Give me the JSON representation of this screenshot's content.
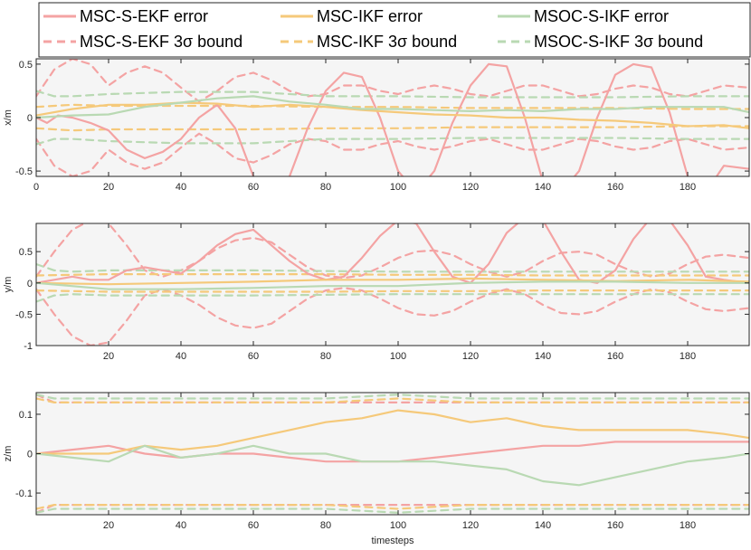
{
  "legend": {
    "location": "top",
    "entries": [
      {
        "label": "MSC-S-EKF error",
        "color": "#f4a3a3",
        "style": "solid"
      },
      {
        "label": "MSC-IKF error",
        "color": "#f5c97a",
        "style": "solid"
      },
      {
        "label": "MSOC-S-IKF error",
        "color": "#b9d9b3",
        "style": "solid"
      },
      {
        "label": "MSC-S-EKF 3σ bound",
        "color": "#f4a3a3",
        "style": "dashed"
      },
      {
        "label": "MSC-IKF 3σ bound",
        "color": "#f5c97a",
        "style": "dashed"
      },
      {
        "label": "MSOC-S-IKF 3σ bound",
        "color": "#b9d9b3",
        "style": "dashed"
      }
    ]
  },
  "chart_data": [
    {
      "type": "line",
      "ylabel": "x/m",
      "xlabel": "",
      "xlim": [
        0,
        197
      ],
      "ylim": [
        -0.55,
        0.55
      ],
      "xticks": [
        0,
        20,
        40,
        60,
        80,
        100,
        120,
        140,
        160,
        180
      ],
      "xtick_labels": [
        "0",
        "20",
        "40",
        "60",
        "80",
        "100",
        "120",
        "140",
        "160",
        "180"
      ],
      "yticks": [
        -0.5,
        0,
        0.5
      ],
      "ytick_labels": [
        "-0.5",
        "0",
        "0.5"
      ],
      "grid": false,
      "background": "#f5f5f5",
      "series": [
        {
          "name": "MSC-S-EKF error",
          "color": "#f4a3a3",
          "style": "solid",
          "x": [
            0,
            3,
            6,
            10,
            15,
            20,
            25,
            30,
            35,
            40,
            45,
            50,
            55,
            60,
            65,
            70,
            75,
            80,
            85,
            90,
            95,
            100,
            105,
            110,
            115,
            120,
            125,
            130,
            135,
            140,
            145,
            150,
            155,
            160,
            165,
            170,
            175,
            180,
            185,
            190,
            197
          ],
          "y": [
            0.0,
            -0.05,
            0.02,
            0.0,
            -0.05,
            -0.12,
            -0.3,
            -0.38,
            -0.32,
            -0.2,
            0.0,
            0.12,
            -0.1,
            -0.55,
            -0.7,
            -0.55,
            -0.1,
            0.25,
            0.42,
            0.38,
            0.0,
            -0.5,
            -0.7,
            -0.5,
            -0.05,
            0.3,
            0.5,
            0.48,
            0.0,
            -0.6,
            -0.7,
            -0.5,
            0.0,
            0.4,
            0.5,
            0.47,
            0.05,
            -0.55,
            -0.7,
            -0.45,
            -0.48
          ]
        },
        {
          "name": "MSC-IKF error",
          "color": "#f5c97a",
          "style": "solid",
          "x": [
            0,
            10,
            20,
            30,
            40,
            50,
            60,
            70,
            80,
            90,
            100,
            110,
            120,
            130,
            140,
            150,
            160,
            170,
            180,
            190,
            197
          ],
          "y": [
            0.02,
            0.08,
            0.12,
            0.12,
            0.14,
            0.13,
            0.1,
            0.12,
            0.1,
            0.07,
            0.05,
            0.03,
            0.02,
            0.0,
            0.0,
            -0.02,
            -0.03,
            -0.05,
            -0.08,
            -0.07,
            -0.1
          ]
        },
        {
          "name": "MSOC-S-IKF error",
          "color": "#b9d9b3",
          "style": "solid",
          "x": [
            0,
            10,
            20,
            30,
            40,
            50,
            60,
            70,
            80,
            90,
            100,
            110,
            120,
            130,
            140,
            150,
            160,
            170,
            180,
            190,
            197
          ],
          "y": [
            0.0,
            0.02,
            0.03,
            0.1,
            0.14,
            0.18,
            0.2,
            0.15,
            0.12,
            0.08,
            0.08,
            0.07,
            0.06,
            0.07,
            0.06,
            0.08,
            0.08,
            0.1,
            0.1,
            0.1,
            0.05
          ]
        },
        {
          "name": "MSC-S-EKF 3σ bound",
          "color": "#f4a3a3",
          "style": "dashed",
          "x": [
            0,
            5,
            10,
            15,
            20,
            25,
            30,
            35,
            40,
            45,
            50,
            55,
            60,
            65,
            70,
            75,
            80,
            85,
            90,
            95,
            100,
            105,
            110,
            115,
            120,
            125,
            130,
            135,
            140,
            145,
            150,
            155,
            160,
            165,
            170,
            175,
            180,
            185,
            190,
            197
          ],
          "y": [
            0.2,
            0.45,
            0.55,
            0.5,
            0.3,
            0.42,
            0.48,
            0.42,
            0.28,
            0.15,
            0.25,
            0.38,
            0.42,
            0.35,
            0.25,
            0.2,
            0.22,
            0.3,
            0.3,
            0.25,
            0.22,
            0.27,
            0.3,
            0.27,
            0.22,
            0.2,
            0.25,
            0.3,
            0.3,
            0.25,
            0.2,
            0.22,
            0.27,
            0.3,
            0.28,
            0.22,
            0.2,
            0.25,
            0.3,
            0.28
          ]
        },
        {
          "name": "MSC-IKF 3σ bound",
          "color": "#f5c97a",
          "style": "dashed",
          "x": [
            0,
            10,
            20,
            40,
            60,
            80,
            100,
            120,
            140,
            160,
            180,
            197
          ],
          "y": [
            0.1,
            0.12,
            0.11,
            0.11,
            0.11,
            0.1,
            0.1,
            0.09,
            0.09,
            0.09,
            0.08,
            0.08
          ]
        },
        {
          "name": "MSOC-S-IKF 3σ bound",
          "color": "#b9d9b3",
          "style": "dashed",
          "x": [
            0,
            5,
            10,
            20,
            40,
            60,
            80,
            100,
            120,
            140,
            160,
            180,
            197
          ],
          "y": [
            0.25,
            0.2,
            0.2,
            0.22,
            0.24,
            0.24,
            0.2,
            0.2,
            0.19,
            0.19,
            0.19,
            0.2,
            0.2
          ]
        }
      ]
    },
    {
      "type": "line",
      "ylabel": "y/m",
      "xlabel": "",
      "xlim": [
        0,
        197
      ],
      "ylim": [
        -1,
        0.95
      ],
      "xticks": [
        20,
        40,
        60,
        80,
        100,
        120,
        140,
        160,
        180
      ],
      "xtick_labels": [
        "20",
        "40",
        "60",
        "80",
        "100",
        "120",
        "140",
        "160",
        "180"
      ],
      "yticks": [
        -1,
        -0.5,
        0,
        0.5
      ],
      "ytick_labels": [
        "-1",
        "-0.5",
        "0",
        "0.5"
      ],
      "grid": false,
      "background": "#f5f5f5",
      "series": [
        {
          "name": "MSC-S-EKF error",
          "color": "#f4a3a3",
          "style": "solid",
          "x": [
            0,
            5,
            10,
            15,
            20,
            25,
            30,
            35,
            40,
            45,
            50,
            55,
            60,
            65,
            70,
            75,
            80,
            85,
            90,
            95,
            100,
            105,
            110,
            115,
            120,
            125,
            130,
            135,
            140,
            145,
            150,
            155,
            160,
            165,
            170,
            175,
            180,
            185,
            190,
            197
          ],
          "y": [
            0.0,
            0.05,
            0.1,
            0.05,
            0.05,
            0.2,
            0.25,
            0.2,
            0.15,
            0.35,
            0.6,
            0.78,
            0.85,
            0.6,
            0.35,
            0.15,
            0.05,
            0.1,
            0.4,
            0.75,
            1.0,
            0.95,
            0.5,
            0.1,
            0.0,
            0.3,
            0.8,
            1.05,
            1.0,
            0.5,
            0.05,
            0.0,
            0.2,
            0.7,
            1.05,
            1.0,
            0.6,
            0.1,
            0.05,
            0.0
          ]
        },
        {
          "name": "MSC-IKF error",
          "color": "#f5c97a",
          "style": "solid",
          "x": [
            0,
            20,
            40,
            60,
            80,
            100,
            120,
            140,
            160,
            180,
            197
          ],
          "y": [
            0.0,
            -0.02,
            0.0,
            0.02,
            0.05,
            0.05,
            0.07,
            0.05,
            0.03,
            0.05,
            0.02
          ]
        },
        {
          "name": "MSOC-S-IKF error",
          "color": "#b9d9b3",
          "style": "solid",
          "x": [
            0,
            20,
            40,
            60,
            80,
            100,
            120,
            140,
            160,
            180,
            197
          ],
          "y": [
            0.0,
            -0.1,
            -0.1,
            -0.08,
            -0.05,
            -0.05,
            0.0,
            0.02,
            0.02,
            0.0,
            0.0
          ]
        },
        {
          "name": "MSC-S-EKF 3σ bound",
          "color": "#f4a3a3",
          "style": "dashed",
          "x": [
            0,
            5,
            10,
            15,
            20,
            25,
            30,
            35,
            40,
            45,
            50,
            55,
            60,
            65,
            70,
            75,
            80,
            85,
            90,
            95,
            100,
            105,
            110,
            115,
            120,
            125,
            130,
            135,
            140,
            145,
            150,
            155,
            160,
            165,
            170,
            175,
            180,
            185,
            190,
            197
          ],
          "y": [
            0.1,
            0.5,
            0.85,
            1.0,
            0.95,
            0.6,
            0.2,
            0.1,
            0.2,
            0.35,
            0.55,
            0.68,
            0.72,
            0.65,
            0.45,
            0.25,
            0.12,
            0.08,
            0.12,
            0.25,
            0.4,
            0.5,
            0.52,
            0.45,
            0.3,
            0.18,
            0.1,
            0.18,
            0.35,
            0.48,
            0.5,
            0.45,
            0.3,
            0.18,
            0.1,
            0.15,
            0.3,
            0.42,
            0.45,
            0.4
          ]
        },
        {
          "name": "MSC-IKF 3σ bound",
          "color": "#f5c97a",
          "style": "dashed",
          "x": [
            0,
            20,
            40,
            60,
            80,
            100,
            120,
            140,
            160,
            180,
            197
          ],
          "y": [
            0.12,
            0.14,
            0.14,
            0.14,
            0.14,
            0.13,
            0.13,
            0.12,
            0.12,
            0.12,
            0.12
          ]
        },
        {
          "name": "MSOC-S-IKF 3σ bound",
          "color": "#b9d9b3",
          "style": "dashed",
          "x": [
            0,
            5,
            10,
            20,
            40,
            60,
            80,
            100,
            120,
            140,
            160,
            180,
            197
          ],
          "y": [
            0.3,
            0.2,
            0.18,
            0.2,
            0.2,
            0.2,
            0.19,
            0.18,
            0.18,
            0.18,
            0.18,
            0.18,
            0.18
          ]
        }
      ]
    },
    {
      "type": "line",
      "ylabel": "z/m",
      "xlabel": "timesteps",
      "xlim": [
        0,
        197
      ],
      "ylim": [
        -0.155,
        0.155
      ],
      "xticks": [
        20,
        40,
        60,
        80,
        100,
        120,
        140,
        160,
        180
      ],
      "xtick_labels": [
        "20",
        "40",
        "60",
        "80",
        "100",
        "120",
        "140",
        "160",
        "180"
      ],
      "yticks": [
        -0.1,
        0,
        0.1
      ],
      "ytick_labels": [
        "-0.1",
        "0",
        "0.1"
      ],
      "grid": false,
      "background": "#f5f5f5",
      "series": [
        {
          "name": "MSC-S-EKF error",
          "color": "#f4a3a3",
          "style": "solid",
          "x": [
            0,
            10,
            20,
            30,
            40,
            50,
            60,
            70,
            80,
            90,
            100,
            110,
            120,
            130,
            140,
            150,
            160,
            170,
            180,
            190,
            197
          ],
          "y": [
            0.0,
            0.01,
            0.02,
            0.0,
            -0.01,
            0.0,
            0.0,
            -0.01,
            -0.02,
            -0.02,
            -0.02,
            -0.01,
            0.0,
            0.01,
            0.02,
            0.02,
            0.03,
            0.03,
            0.03,
            0.03,
            0.03
          ]
        },
        {
          "name": "MSC-IKF error",
          "color": "#f5c97a",
          "style": "solid",
          "x": [
            0,
            10,
            20,
            30,
            40,
            50,
            60,
            70,
            80,
            90,
            100,
            110,
            120,
            130,
            140,
            150,
            160,
            170,
            180,
            190,
            197
          ],
          "y": [
            0.0,
            0.0,
            0.0,
            0.02,
            0.01,
            0.02,
            0.04,
            0.06,
            0.08,
            0.09,
            0.11,
            0.1,
            0.08,
            0.09,
            0.07,
            0.06,
            0.06,
            0.06,
            0.06,
            0.05,
            0.04
          ]
        },
        {
          "name": "MSOC-S-IKF error",
          "color": "#b9d9b3",
          "style": "solid",
          "x": [
            0,
            10,
            20,
            30,
            40,
            50,
            60,
            70,
            80,
            90,
            100,
            110,
            120,
            130,
            140,
            150,
            160,
            170,
            180,
            190,
            197
          ],
          "y": [
            0.0,
            -0.01,
            -0.02,
            0.02,
            -0.01,
            0.0,
            0.02,
            0.0,
            0.0,
            -0.02,
            -0.02,
            -0.02,
            -0.03,
            -0.04,
            -0.07,
            -0.08,
            -0.06,
            -0.04,
            -0.02,
            -0.01,
            0.0
          ]
        },
        {
          "name": "MSC-S-EKF 3σ bound",
          "color": "#f4a3a3",
          "style": "dashed",
          "x": [
            0,
            5,
            10,
            20,
            40,
            60,
            80,
            100,
            120,
            140,
            160,
            180,
            197
          ],
          "y": [
            0.15,
            0.13,
            0.13,
            0.13,
            0.13,
            0.13,
            0.13,
            0.13,
            0.13,
            0.13,
            0.13,
            0.13,
            0.13
          ]
        },
        {
          "name": "MSC-IKF 3σ bound",
          "color": "#f5c97a",
          "style": "dashed",
          "x": [
            0,
            5,
            10,
            20,
            40,
            60,
            80,
            100,
            120,
            140,
            160,
            180,
            197
          ],
          "y": [
            0.14,
            0.13,
            0.13,
            0.13,
            0.13,
            0.13,
            0.13,
            0.14,
            0.13,
            0.13,
            0.13,
            0.13,
            0.13
          ]
        },
        {
          "name": "MSOC-S-IKF 3σ bound",
          "color": "#b9d9b3",
          "style": "dashed",
          "x": [
            0,
            5,
            10,
            20,
            40,
            60,
            80,
            100,
            120,
            140,
            160,
            180,
            197
          ],
          "y": [
            0.15,
            0.14,
            0.14,
            0.14,
            0.14,
            0.14,
            0.14,
            0.15,
            0.14,
            0.14,
            0.14,
            0.14,
            0.14
          ]
        }
      ]
    }
  ]
}
